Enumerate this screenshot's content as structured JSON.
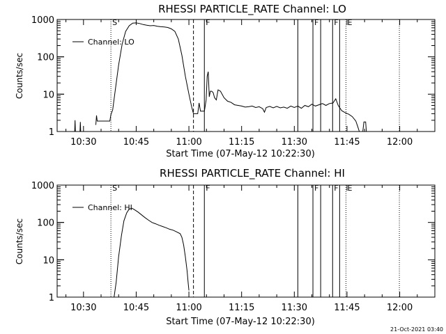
{
  "footer": {
    "timestamp": "21-Oct-2021 03:40"
  },
  "chart_data": [
    {
      "type": "line",
      "title": "RHESSI PARTICLE_RATE Channel: LO",
      "xlabel": "Start Time (07-May-12 10:22:30)",
      "ylabel": "Counts/sec",
      "yscale": "log",
      "ylim": [
        1,
        1000
      ],
      "xlim_minutes": [
        0,
        107.5
      ],
      "x_ticks": [
        {
          "label": "10:30",
          "minutes": 7.5
        },
        {
          "label": "10:45",
          "minutes": 22.5
        },
        {
          "label": "11:00",
          "minutes": 37.5
        },
        {
          "label": "11:15",
          "minutes": 52.5
        },
        {
          "label": "11:30",
          "minutes": 67.5
        },
        {
          "label": "11:45",
          "minutes": 82.5
        },
        {
          "label": "12:00",
          "minutes": 97.5
        }
      ],
      "y_ticks": [
        {
          "label": "1",
          "value": 1
        },
        {
          "label": "10",
          "value": 10
        },
        {
          "label": "100",
          "value": 100
        },
        {
          "label": "1000",
          "value": 1000
        }
      ],
      "legend": {
        "label": "Channel: LO",
        "position": "top-left"
      },
      "markers": [
        {
          "label": "S",
          "minutes": 15.3,
          "style": "dotted"
        },
        {
          "label": "",
          "minutes": 38.8,
          "style": "dashed"
        },
        {
          "label": "F",
          "minutes": 41.9,
          "style": "solid"
        },
        {
          "label": "",
          "minutes": 68.5,
          "style": "solid"
        },
        {
          "label": "F",
          "minutes": 72.8,
          "style": "solid"
        },
        {
          "label": "",
          "minutes": 75.0,
          "style": "solid"
        },
        {
          "label": "F",
          "minutes": 78.4,
          "style": "solid"
        },
        {
          "label": "",
          "minutes": 80.4,
          "style": "solid"
        },
        {
          "label": "E",
          "minutes": 82.2,
          "style": "dotted"
        },
        {
          "label": "",
          "minutes": 97.4,
          "style": "dotted"
        }
      ],
      "segments": [
        [
          [
            5.0,
            1.0
          ],
          [
            5.1,
            2.0
          ],
          [
            5.2,
            1.0
          ]
        ],
        [
          [
            6.5,
            1.0
          ],
          [
            6.6,
            1.8
          ],
          [
            6.7,
            1.0
          ]
        ],
        [
          [
            11.0,
            1.5
          ],
          [
            11.2,
            2.7
          ],
          [
            11.4,
            1.9
          ],
          [
            15.0,
            1.9
          ],
          [
            15.3,
            2.8
          ],
          [
            15.8,
            3.8
          ],
          [
            16.5,
            12
          ],
          [
            17.5,
            60
          ],
          [
            18.5,
            220
          ],
          [
            19.5,
            480
          ],
          [
            20.5,
            680
          ],
          [
            21.5,
            800
          ],
          [
            22.5,
            810
          ],
          [
            23.5,
            780
          ],
          [
            24.5,
            730
          ],
          [
            25.5,
            700
          ],
          [
            26.5,
            680
          ],
          [
            27.5,
            690
          ],
          [
            28.5,
            660
          ],
          [
            29.5,
            640
          ],
          [
            30.5,
            630
          ],
          [
            31.5,
            610
          ],
          [
            32.5,
            560
          ],
          [
            33.5,
            480
          ],
          [
            34.5,
            300
          ],
          [
            35.5,
            110
          ],
          [
            36.5,
            30
          ],
          [
            37.5,
            10
          ],
          [
            38.3,
            4.5
          ],
          [
            38.8,
            3.0
          ],
          [
            40.0,
            3.0
          ],
          [
            40.4,
            5.8
          ],
          [
            40.8,
            3.5
          ],
          [
            41.9,
            3.5
          ],
          [
            42.4,
            7.0
          ],
          [
            42.7,
            30
          ],
          [
            43.0,
            40
          ],
          [
            43.3,
            8.5
          ],
          [
            43.6,
            12
          ],
          [
            44.0,
            12
          ],
          [
            44.4,
            11
          ],
          [
            44.8,
            8.0
          ],
          [
            45.3,
            7.0
          ],
          [
            45.8,
            13
          ],
          [
            46.5,
            12
          ],
          [
            47.5,
            8.0
          ],
          [
            48.5,
            6.5
          ],
          [
            49.5,
            6.0
          ],
          [
            50.5,
            5.2
          ],
          [
            51.5,
            5.0
          ],
          [
            52.5,
            4.8
          ],
          [
            53.5,
            4.5
          ],
          [
            54.5,
            4.6
          ],
          [
            55.5,
            4.8
          ],
          [
            56.5,
            4.4
          ],
          [
            57.5,
            4.6
          ],
          [
            58.5,
            4.1
          ],
          [
            59.0,
            3.3
          ],
          [
            59.5,
            4.4
          ],
          [
            60.5,
            4.7
          ],
          [
            61.5,
            4.3
          ],
          [
            62.5,
            4.7
          ],
          [
            63.5,
            4.3
          ],
          [
            64.5,
            4.5
          ],
          [
            65.5,
            4.2
          ],
          [
            66.5,
            4.8
          ],
          [
            67.5,
            4.4
          ],
          [
            68.5,
            4.8
          ],
          [
            69.5,
            4.2
          ],
          [
            70.5,
            5.0
          ],
          [
            71.5,
            4.6
          ],
          [
            72.5,
            5.4
          ],
          [
            73.5,
            4.8
          ],
          [
            74.5,
            5.2
          ],
          [
            75.5,
            5.6
          ],
          [
            76.5,
            5.0
          ],
          [
            77.5,
            5.6
          ],
          [
            78.5,
            5.8
          ],
          [
            79.3,
            7.5
          ],
          [
            80.0,
            5.0
          ],
          [
            81.0,
            3.6
          ],
          [
            82.0,
            3.2
          ],
          [
            83.0,
            2.9
          ],
          [
            84.0,
            2.5
          ],
          [
            85.0,
            1.9
          ],
          [
            85.5,
            1.4
          ],
          [
            86.0,
            1.0
          ]
        ],
        [
          [
            87.0,
            1.0
          ],
          [
            87.3,
            1.8
          ],
          [
            87.8,
            1.8
          ],
          [
            88.0,
            1.0
          ]
        ]
      ]
    },
    {
      "type": "line",
      "title": "RHESSI PARTICLE_RATE Channel: HI",
      "xlabel": "Start Time (07-May-12 10:22:30)",
      "ylabel": "Counts/sec",
      "yscale": "log",
      "ylim": [
        1,
        1000
      ],
      "xlim_minutes": [
        0,
        107.5
      ],
      "x_ticks": [
        {
          "label": "10:30",
          "minutes": 7.5
        },
        {
          "label": "10:45",
          "minutes": 22.5
        },
        {
          "label": "11:00",
          "minutes": 37.5
        },
        {
          "label": "11:15",
          "minutes": 52.5
        },
        {
          "label": "11:30",
          "minutes": 67.5
        },
        {
          "label": "11:45",
          "minutes": 82.5
        },
        {
          "label": "12:00",
          "minutes": 97.5
        }
      ],
      "y_ticks": [
        {
          "label": "1",
          "value": 1
        },
        {
          "label": "10",
          "value": 10
        },
        {
          "label": "100",
          "value": 100
        },
        {
          "label": "1000",
          "value": 1000
        }
      ],
      "legend": {
        "label": "Channel: HI",
        "position": "top-left"
      },
      "markers": [
        {
          "label": "S",
          "minutes": 15.3,
          "style": "dotted"
        },
        {
          "label": "",
          "minutes": 38.8,
          "style": "dashed"
        },
        {
          "label": "F",
          "minutes": 41.9,
          "style": "solid"
        },
        {
          "label": "",
          "minutes": 68.5,
          "style": "solid"
        },
        {
          "label": "F",
          "minutes": 72.8,
          "style": "solid"
        },
        {
          "label": "",
          "minutes": 75.0,
          "style": "solid"
        },
        {
          "label": "F",
          "minutes": 78.4,
          "style": "solid"
        },
        {
          "label": "",
          "minutes": 80.4,
          "style": "solid"
        },
        {
          "label": "E",
          "minutes": 82.2,
          "style": "dotted"
        },
        {
          "label": "",
          "minutes": 97.4,
          "style": "dotted"
        }
      ],
      "segments": [
        [
          [
            16.2,
            1.0
          ],
          [
            16.8,
            2.5
          ],
          [
            17.5,
            12
          ],
          [
            18.3,
            45
          ],
          [
            19.0,
            110
          ],
          [
            19.8,
            180
          ],
          [
            20.5,
            230
          ],
          [
            21.3,
            240
          ],
          [
            22.0,
            220
          ],
          [
            23.0,
            190
          ],
          [
            24.0,
            160
          ],
          [
            25.0,
            135
          ],
          [
            26.0,
            115
          ],
          [
            27.0,
            100
          ],
          [
            28.0,
            92
          ],
          [
            29.0,
            84
          ],
          [
            30.0,
            78
          ],
          [
            31.0,
            72
          ],
          [
            32.0,
            66
          ],
          [
            33.0,
            62
          ],
          [
            34.0,
            56
          ],
          [
            35.0,
            50
          ],
          [
            35.5,
            40
          ],
          [
            36.0,
            25
          ],
          [
            36.5,
            12
          ],
          [
            37.0,
            5.0
          ],
          [
            37.3,
            2.3
          ],
          [
            37.5,
            1.5
          ]
        ]
      ]
    }
  ]
}
